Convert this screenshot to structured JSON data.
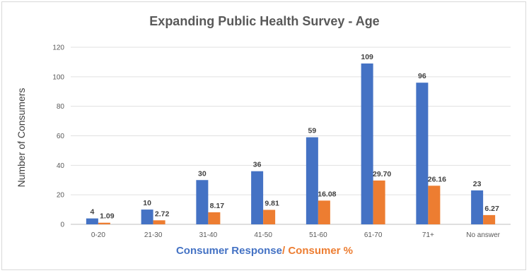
{
  "chart_data": {
    "type": "bar",
    "title": "Expanding Public Health Survey - Age",
    "ylabel": "Number of Consumers",
    "xlabel_parts": [
      "Consumer Response",
      "/ Consumer %"
    ],
    "categories": [
      "0-20",
      "21-30",
      "31-40",
      "41-50",
      "51-60",
      "61-70",
      "71+",
      "No answer"
    ],
    "series": [
      {
        "values": [
          4,
          10,
          30,
          36,
          59,
          109,
          96,
          23
        ],
        "labels": [
          "4",
          "10",
          "30",
          "36",
          "59",
          "109",
          "96",
          "23"
        ],
        "color": "#4472c4"
      },
      {
        "values": [
          1.09,
          2.72,
          8.17,
          9.81,
          16.08,
          29.7,
          26.16,
          6.27
        ],
        "labels": [
          "1.09",
          "2.72",
          "8.17",
          "9.81",
          "16.08",
          "29.70",
          "26.16",
          "6.27"
        ],
        "color": "#ed7d31"
      }
    ],
    "ylim": [
      0,
      120
    ],
    "yticks": [
      0,
      20,
      40,
      60,
      80,
      100,
      120
    ],
    "grid": true,
    "legend": "none"
  }
}
